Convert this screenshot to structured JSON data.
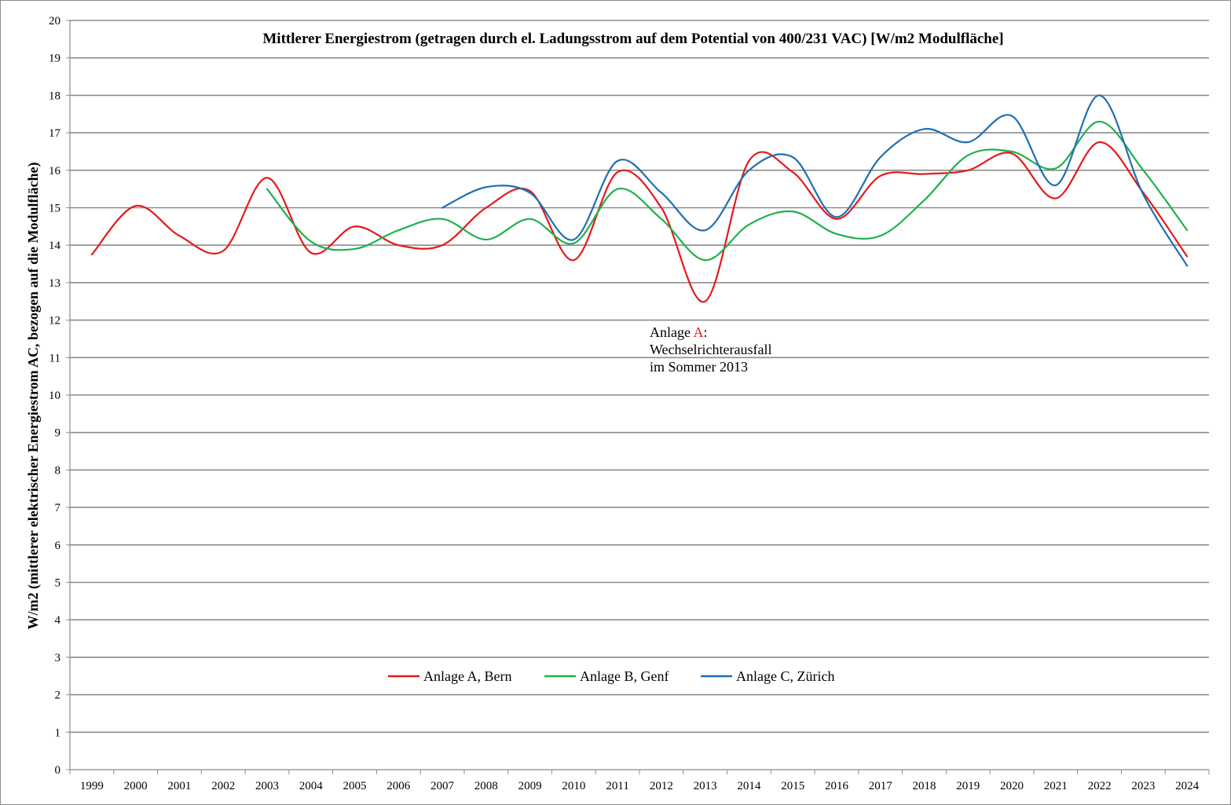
{
  "chart_data": {
    "type": "line",
    "title": "Mittlerer Energiestrom (getragen durch el. Ladungsstrom auf dem Potential von 400/231 VAC) [W/m2 Modulfläche]",
    "ylabel": "W/m2 (mittlerer elektrischer Energiestrom AC, bezogen auf die Modulfläche)",
    "xlabel": "",
    "ylim": [
      0,
      20
    ],
    "yticks": [
      "0",
      "1",
      "2",
      "3",
      "4",
      "5",
      "6",
      "7",
      "8",
      "9",
      "10",
      "11",
      "12",
      "13",
      "14",
      "15",
      "16",
      "17",
      "18",
      "19",
      "20"
    ],
    "categories": [
      "1999",
      "2000",
      "2001",
      "2002",
      "2003",
      "2004",
      "2005",
      "2006",
      "2007",
      "2008",
      "2009",
      "2010",
      "2011",
      "2012",
      "2013",
      "2014",
      "2015",
      "2016",
      "2017",
      "2018",
      "2019",
      "2020",
      "2021",
      "2022",
      "2023",
      "2024"
    ],
    "grid": "horizontal",
    "legend_position": "bottom-center",
    "series": [
      {
        "name": "Anlage A, Bern",
        "color": "#e31a1c",
        "values": [
          13.75,
          15.05,
          14.25,
          13.85,
          15.8,
          13.8,
          14.5,
          14.0,
          14.0,
          15.0,
          15.45,
          13.6,
          15.95,
          15.0,
          12.5,
          16.25,
          15.95,
          14.7,
          15.85,
          15.9,
          16.0,
          16.45,
          15.25,
          16.75,
          15.4,
          13.7
        ]
      },
      {
        "name": "Anlage B, Genf",
        "color": "#1fb04c",
        "values": [
          null,
          null,
          null,
          null,
          15.5,
          14.1,
          13.9,
          14.4,
          14.7,
          14.15,
          14.7,
          14.05,
          15.5,
          14.7,
          13.6,
          14.55,
          14.9,
          14.3,
          14.25,
          15.2,
          16.4,
          16.5,
          16.05,
          17.3,
          16.0,
          14.4
        ]
      },
      {
        "name": "Anlage C, Zürich",
        "color": "#1f6fb2",
        "values": [
          null,
          null,
          null,
          null,
          null,
          null,
          null,
          null,
          15.0,
          15.55,
          15.4,
          14.15,
          16.25,
          15.4,
          14.4,
          16.0,
          16.35,
          14.75,
          16.35,
          17.1,
          16.75,
          17.45,
          15.6,
          18.0,
          15.35,
          13.45
        ]
      }
    ],
    "annotation": {
      "line1_prefix": "Anlage ",
      "line1_highlight": "A",
      "line1_suffix": ":",
      "line2": "Wechselrichterausfall",
      "line3": "im Sommer 2013",
      "highlight_color": "#e31a1c"
    }
  }
}
